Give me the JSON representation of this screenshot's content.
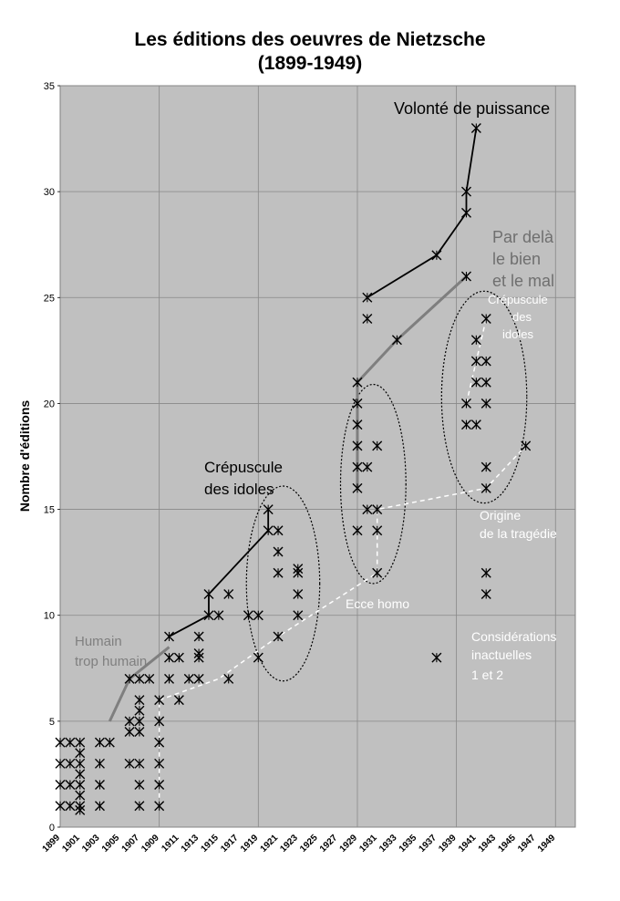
{
  "chart_data": {
    "type": "scatter",
    "title": "Les éditions des oeuvres de Nietzsche",
    "subtitle": "(1899-1949)",
    "xlabel": "",
    "ylabel": "Nombre d'éditions",
    "xlim": [
      1899,
      1951
    ],
    "ylim": [
      0,
      35
    ],
    "y_ticks": [
      0,
      5,
      10,
      15,
      20,
      25,
      30,
      35
    ],
    "x_ticks": [
      1899,
      1901,
      1903,
      1905,
      1907,
      1909,
      1911,
      1913,
      1915,
      1917,
      1919,
      1921,
      1923,
      1925,
      1927,
      1929,
      1931,
      1933,
      1935,
      1937,
      1939,
      1941,
      1943,
      1945,
      1947,
      1949
    ],
    "grid": true,
    "points": [
      [
        1899,
        4
      ],
      [
        1899,
        3
      ],
      [
        1899,
        2
      ],
      [
        1899,
        1
      ],
      [
        1900,
        4
      ],
      [
        1900,
        3
      ],
      [
        1900,
        2
      ],
      [
        1900,
        1
      ],
      [
        1901,
        4
      ],
      [
        1901,
        3.5
      ],
      [
        1901,
        3
      ],
      [
        1901,
        2.5
      ],
      [
        1901,
        2
      ],
      [
        1901,
        1.5
      ],
      [
        1901,
        1
      ],
      [
        1901,
        0.8
      ],
      [
        1903,
        4
      ],
      [
        1903,
        3
      ],
      [
        1903,
        2
      ],
      [
        1903,
        1
      ],
      [
        1904,
        4
      ],
      [
        1906,
        7
      ],
      [
        1906,
        5
      ],
      [
        1906,
        4.5
      ],
      [
        1906,
        3
      ],
      [
        1907,
        7
      ],
      [
        1907,
        6
      ],
      [
        1907,
        5.5
      ],
      [
        1907,
        5
      ],
      [
        1907,
        4.5
      ],
      [
        1907,
        3
      ],
      [
        1907,
        2
      ],
      [
        1907,
        1
      ],
      [
        1908,
        7
      ],
      [
        1909,
        6
      ],
      [
        1909,
        5
      ],
      [
        1909,
        4
      ],
      [
        1909,
        3
      ],
      [
        1909,
        2
      ],
      [
        1909,
        1
      ],
      [
        1910,
        9
      ],
      [
        1910,
        8
      ],
      [
        1910,
        7
      ],
      [
        1911,
        8
      ],
      [
        1911,
        6
      ],
      [
        1912,
        7
      ],
      [
        1913,
        9
      ],
      [
        1913,
        8.2
      ],
      [
        1913,
        8
      ],
      [
        1913,
        7
      ],
      [
        1914,
        11
      ],
      [
        1914,
        10
      ],
      [
        1915,
        10
      ],
      [
        1916,
        11
      ],
      [
        1916,
        7
      ],
      [
        1918,
        10
      ],
      [
        1919,
        10
      ],
      [
        1919,
        8
      ],
      [
        1920,
        15
      ],
      [
        1920,
        14
      ],
      [
        1921,
        14
      ],
      [
        1921,
        13
      ],
      [
        1921,
        12
      ],
      [
        1921,
        9
      ],
      [
        1923,
        12.2
      ],
      [
        1923,
        12
      ],
      [
        1923,
        11
      ],
      [
        1923,
        10
      ],
      [
        1929,
        21
      ],
      [
        1929,
        20
      ],
      [
        1929,
        19
      ],
      [
        1929,
        18
      ],
      [
        1929,
        17
      ],
      [
        1929,
        16
      ],
      [
        1929,
        14
      ],
      [
        1930,
        25
      ],
      [
        1930,
        24
      ],
      [
        1930,
        17
      ],
      [
        1930,
        15
      ],
      [
        1931,
        18
      ],
      [
        1931,
        15
      ],
      [
        1931,
        14
      ],
      [
        1931,
        12
      ],
      [
        1933,
        23
      ],
      [
        1937,
        8
      ],
      [
        1937,
        27
      ],
      [
        1940,
        30
      ],
      [
        1940,
        29
      ],
      [
        1940,
        26
      ],
      [
        1940,
        20
      ],
      [
        1940,
        19
      ],
      [
        1941,
        33
      ],
      [
        1941,
        23
      ],
      [
        1941,
        22
      ],
      [
        1941,
        21
      ],
      [
        1941,
        19
      ],
      [
        1942,
        24
      ],
      [
        1942,
        22
      ],
      [
        1942,
        21
      ],
      [
        1942,
        20
      ],
      [
        1942,
        17
      ],
      [
        1942,
        16
      ],
      [
        1942,
        12
      ],
      [
        1942,
        11
      ],
      [
        1946,
        18
      ]
    ],
    "series": [
      {
        "name": "Volonté de puissance",
        "color": "#000000",
        "points": [
          [
            1930,
            25
          ],
          [
            1937,
            27
          ],
          [
            1940,
            29
          ],
          [
            1940,
            30
          ],
          [
            1941,
            33
          ]
        ]
      },
      {
        "name": "Par delà le bien et le mal",
        "color": "#7f7f7f",
        "points": [
          [
            1929,
            16
          ],
          [
            1929,
            21
          ],
          [
            1933,
            23
          ],
          [
            1940,
            26
          ]
        ]
      },
      {
        "name": "Crépuscule des idoles",
        "color": "#000000",
        "points": [
          [
            1910,
            9
          ],
          [
            1914,
            10
          ],
          [
            1914,
            11
          ],
          [
            1920,
            14
          ],
          [
            1920,
            15
          ]
        ]
      },
      {
        "name": "Humain trop humain",
        "color": "#7f7f7f",
        "points": [
          [
            1904,
            5
          ],
          [
            1906,
            7
          ],
          [
            1910,
            8.5
          ]
        ]
      }
    ],
    "annotations": {
      "volonte": "Volonté de puissance",
      "pardela_1": "Par delà",
      "pardela_2": "le bien",
      "pardela_3": "et le mal",
      "crep_right_1": "Crépuscule",
      "crep_right_2": "des",
      "crep_right_3": "idoles",
      "crep_left_1": "Crépuscule",
      "crep_left_2": "des idoles",
      "origine_1": "Origine",
      "origine_2": "de la tragédie",
      "ecce": "Ecce homo",
      "humain_1": "Humain",
      "humain_2": "trop humain",
      "consid_1": "Considérations",
      "consid_2": "inactuelles",
      "consid_3": "1 et 2"
    }
  },
  "colors": {
    "plot_bg": "#c0c0c0",
    "grid": "#888888",
    "dark_line": "#000000",
    "gray_line": "#7f7f7f",
    "white_annotation": "#ffffff"
  }
}
